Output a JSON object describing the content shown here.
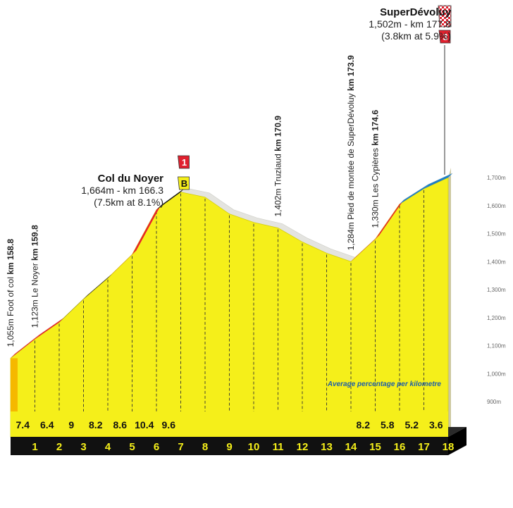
{
  "chart_data": {
    "type": "area",
    "title": "",
    "xlabel": "",
    "ylabel": "",
    "annotation_label": "Average percentage per kilometre",
    "y_ticks": [
      "900m",
      "1,000m",
      "1,100m",
      "1,200m",
      "1,300m",
      "1,400m",
      "1,500m",
      "1,600m",
      "1,700m"
    ],
    "ylim": [
      900,
      1700
    ],
    "km_markers": [
      "1",
      "2",
      "3",
      "4",
      "5",
      "6",
      "7",
      "8",
      "9",
      "10",
      "11",
      "12",
      "13",
      "14",
      "15",
      "16",
      "17",
      "18"
    ],
    "gradients": [
      "7.4",
      "6.4",
      "9",
      "8.2",
      "8.6",
      "10.4",
      "9.6",
      "",
      "",
      "",
      "",
      "",
      "",
      "",
      "8.2",
      "5.8",
      "5.2",
      "3.6"
    ],
    "profile": {
      "x": [
        0,
        1,
        2,
        3,
        4,
        5,
        6,
        7,
        8,
        9,
        10,
        11,
        12,
        13,
        14,
        15,
        16,
        17,
        18
      ],
      "y": [
        1055,
        1123,
        1183,
        1266,
        1341,
        1425,
        1585,
        1648,
        1630,
        1570,
        1540,
        1520,
        1470,
        1430,
        1400,
        1480,
        1605,
        1660,
        1700
      ]
    },
    "climb_sections": [
      {
        "from": 0,
        "to": 7,
        "colors": [
          "#e8202a",
          "#111111",
          "#e8202a",
          "#111111"
        ]
      },
      {
        "from": 14,
        "to": 18,
        "colors": [
          "#e8202a",
          "#1e7fc8"
        ]
      }
    ],
    "points": [
      {
        "label_prefix": "1,055m Foot of col ",
        "label_km": "km 158.8",
        "x": 0
      },
      {
        "label_prefix": "1,123m Le Noyer ",
        "label_km": "km 159.8",
        "x": 1
      },
      {
        "label_prefix": "1,402m Truziaud ",
        "label_km": "km 170.9",
        "x": 11
      },
      {
        "label_prefix": "1,284m Pied de montée de SuperDévoluy ",
        "label_km": "km 173.9",
        "x": 14
      },
      {
        "label_prefix": "1,330m Les Cypières ",
        "label_km": "km 174.6",
        "x": 15
      }
    ],
    "summits": [
      {
        "name": "Col du Noyer",
        "line1": "1,664m - km 166.3",
        "line2": "(7.5km at 8.1%)",
        "badges": [
          "1",
          "B"
        ]
      },
      {
        "name": "SuperDévoluy",
        "line1": "1,502m - km 177.8",
        "line2": "(3.8km at 5.9%)",
        "badges": [
          "3"
        ]
      }
    ],
    "colors": {
      "fill": "#f5ef1a",
      "base": "#111111",
      "km_text": "#f5ef1a",
      "climb_red": "#e8202a",
      "climb_blue": "#1e7fc8",
      "badge_red": "#e0202e",
      "badge_yellow": "#f5ef1a",
      "annotation": "#1e5fa8"
    }
  }
}
